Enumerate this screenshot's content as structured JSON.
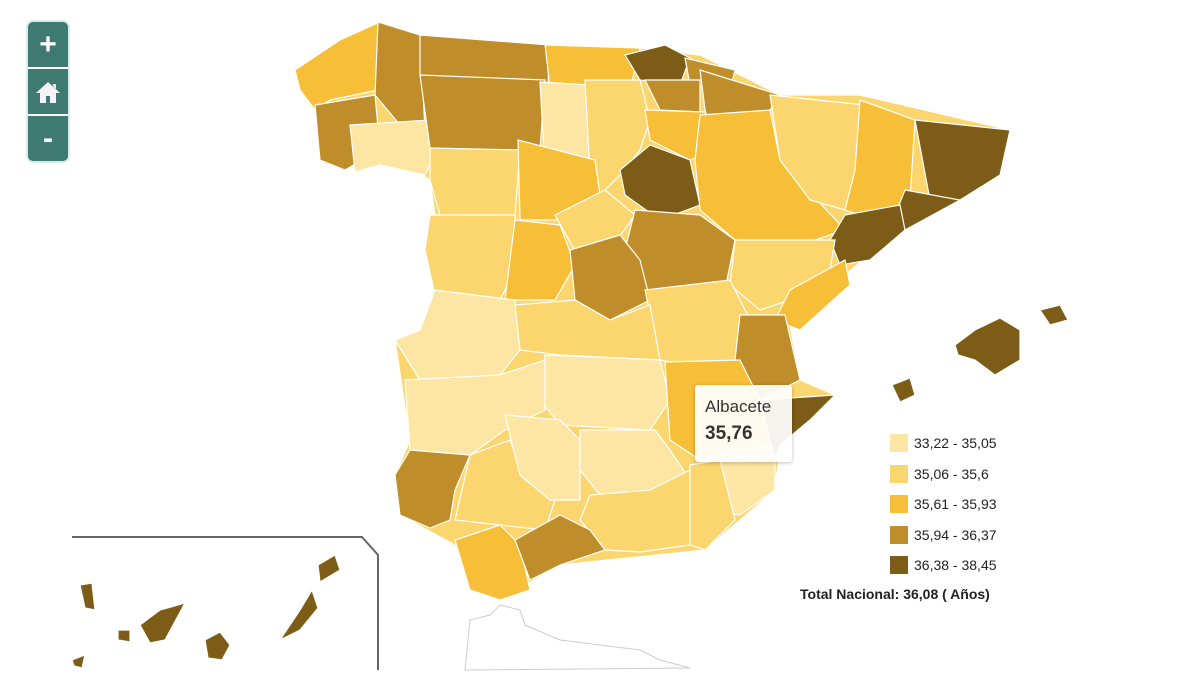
{
  "zoom_controls": {
    "zoom_in": "+",
    "home_icon": "home-icon",
    "zoom_out": "-"
  },
  "tooltip": {
    "name": "Albacete",
    "value": "35,76"
  },
  "legend": {
    "items": [
      {
        "label": "33,22 - 35,05",
        "color": "#fde6a3"
      },
      {
        "label": "35,06 - 35,6",
        "color": "#fbd66f"
      },
      {
        "label": "35,61 - 35,93",
        "color": "#f7be38"
      },
      {
        "label": "35,94 - 36,37",
        "color": "#bf8d29"
      },
      {
        "label": "36,38 - 38,45",
        "color": "#7c5c16"
      }
    ],
    "total": "Total Nacional: 36,08 ( Años)"
  }
}
